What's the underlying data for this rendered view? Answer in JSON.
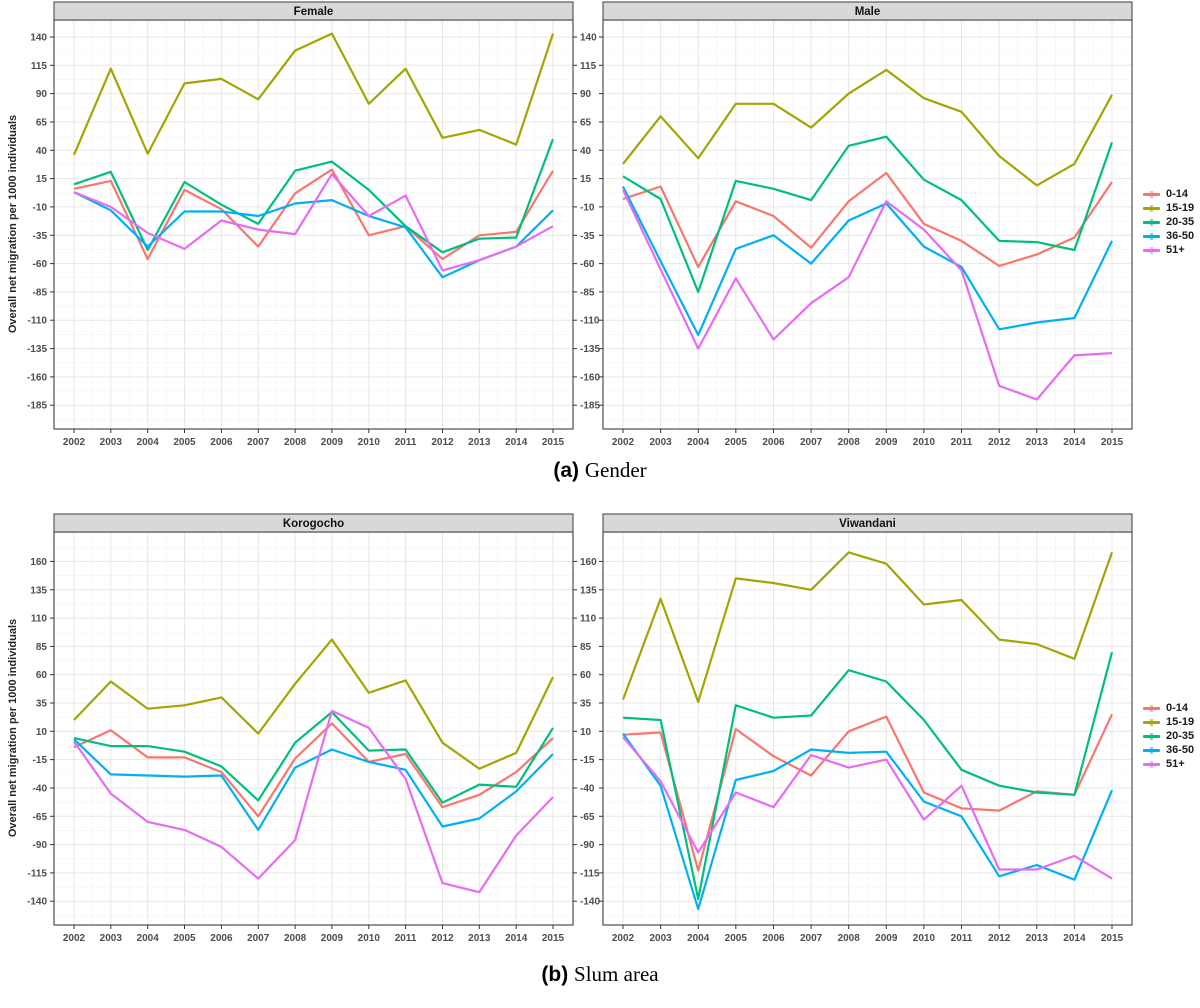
{
  "figure": {
    "caption_a_label": "(a)",
    "caption_a_text": "Gender",
    "caption_b_label": "(b)",
    "caption_b_text": "Slum area"
  },
  "axis": {
    "y_title": "Overall net migration per 1000 individuals",
    "years": [
      2002,
      2003,
      2004,
      2005,
      2006,
      2007,
      2008,
      2009,
      2010,
      2011,
      2012,
      2013,
      2014,
      2015
    ]
  },
  "legend": {
    "entries": [
      {
        "label": "0-14",
        "color": "#F8766D"
      },
      {
        "label": "15-19",
        "color": "#A3A500"
      },
      {
        "label": "20-35",
        "color": "#00BF7D"
      },
      {
        "label": "36-50",
        "color": "#00B0F6"
      },
      {
        "label": "51+",
        "color": "#E76BF3"
      }
    ]
  },
  "chart_data": [
    {
      "type": "line",
      "title": "Female",
      "xlabel": "",
      "ylabel": "Overall net migration per 1000 individuals",
      "x": [
        2002,
        2003,
        2004,
        2005,
        2006,
        2007,
        2008,
        2009,
        2010,
        2011,
        2012,
        2013,
        2014,
        2015
      ],
      "ylim": [
        -206,
        155
      ],
      "yticks": [
        140,
        115,
        90,
        65,
        40,
        15,
        -10,
        -35,
        -60,
        -85,
        -110,
        -135,
        -160,
        -185
      ],
      "legend_position": "right",
      "series": [
        {
          "name": "0-14",
          "color": "#F8766D",
          "values": [
            6,
            13,
            -56,
            5,
            -12,
            -45,
            2,
            23,
            -35,
            -27,
            -56,
            -35,
            -32,
            22
          ]
        },
        {
          "name": "15-19",
          "color": "#A3A500",
          "values": [
            36,
            112,
            37,
            99,
            103,
            85,
            128,
            143,
            81,
            112,
            51,
            58,
            45,
            143
          ]
        },
        {
          "name": "20-35",
          "color": "#00BF7D",
          "values": [
            10,
            21,
            -48,
            12,
            -8,
            -25,
            22,
            30,
            5,
            -27,
            -50,
            -38,
            -37,
            50
          ]
        },
        {
          "name": "36-50",
          "color": "#00B0F6",
          "values": [
            3,
            -13,
            -45,
            -14,
            -14,
            -18,
            -7,
            -4,
            -18,
            -28,
            -72,
            -57,
            -45,
            -13
          ]
        },
        {
          "name": "51+",
          "color": "#E76BF3",
          "values": [
            3,
            -10,
            -33,
            -47,
            -22,
            -30,
            -34,
            19,
            -18,
            0,
            -66,
            -57,
            -45,
            -27
          ]
        }
      ]
    },
    {
      "type": "line",
      "title": "Male",
      "xlabel": "",
      "ylabel": "Overall net migration per 1000 individuals",
      "x": [
        2002,
        2003,
        2004,
        2005,
        2006,
        2007,
        2008,
        2009,
        2010,
        2011,
        2012,
        2013,
        2014,
        2015
      ],
      "ylim": [
        -206,
        155
      ],
      "yticks": [
        140,
        115,
        90,
        65,
        40,
        15,
        -10,
        -35,
        -60,
        -85,
        -110,
        -135,
        -160,
        -185
      ],
      "legend_position": "right",
      "series": [
        {
          "name": "0-14",
          "color": "#F8766D",
          "values": [
            -3,
            8,
            -63,
            -5,
            -18,
            -46,
            -5,
            20,
            -25,
            -40,
            -62,
            -52,
            -37,
            12
          ]
        },
        {
          "name": "15-19",
          "color": "#A3A500",
          "values": [
            28,
            70,
            33,
            81,
            81,
            60,
            90,
            111,
            86,
            74,
            35,
            9,
            28,
            89
          ]
        },
        {
          "name": "20-35",
          "color": "#00BF7D",
          "values": [
            17,
            -3,
            -85,
            13,
            6,
            -4,
            44,
            52,
            14,
            -4,
            -40,
            -41,
            -48,
            47
          ]
        },
        {
          "name": "36-50",
          "color": "#00B0F6",
          "values": [
            8,
            -58,
            -123,
            -47,
            -35,
            -60,
            -22,
            -7,
            -45,
            -63,
            -118,
            -112,
            -108,
            -40
          ]
        },
        {
          "name": "51+",
          "color": "#E76BF3",
          "values": [
            5,
            -65,
            -135,
            -73,
            -127,
            -95,
            -72,
            -5,
            -30,
            -66,
            -168,
            -180,
            -141,
            -139
          ]
        }
      ]
    },
    {
      "type": "line",
      "title": "Korogocho",
      "xlabel": "",
      "ylabel": "Overall net migration per 1000 individuals",
      "x": [
        2002,
        2003,
        2004,
        2005,
        2006,
        2007,
        2008,
        2009,
        2010,
        2011,
        2012,
        2013,
        2014,
        2015
      ],
      "ylim": [
        -161,
        186
      ],
      "yticks": [
        160,
        135,
        110,
        85,
        60,
        35,
        10,
        -15,
        -40,
        -65,
        -90,
        -115,
        -140
      ],
      "legend_position": "right",
      "series": [
        {
          "name": "0-14",
          "color": "#F8766D",
          "values": [
            -4,
            11,
            -13,
            -13,
            -26,
            -65,
            -14,
            17,
            -17,
            -10,
            -57,
            -46,
            -26,
            4
          ]
        },
        {
          "name": "15-19",
          "color": "#A3A500",
          "values": [
            20,
            54,
            30,
            33,
            40,
            8,
            52,
            91,
            44,
            55,
            0,
            -23,
            -9,
            58
          ]
        },
        {
          "name": "20-35",
          "color": "#00BF7D",
          "values": [
            4,
            -3,
            -3,
            -8,
            -21,
            -51,
            0,
            27,
            -7,
            -6,
            -53,
            -37,
            -39,
            13
          ]
        },
        {
          "name": "36-50",
          "color": "#00B0F6",
          "values": [
            3,
            -28,
            -29,
            -30,
            -29,
            -77,
            -22,
            -6,
            -17,
            -24,
            -74,
            -67,
            -43,
            -10
          ]
        },
        {
          "name": "51+",
          "color": "#E76BF3",
          "values": [
            1,
            -45,
            -70,
            -77,
            -92,
            -120,
            -86,
            28,
            13,
            -32,
            -124,
            -132,
            -82,
            -48
          ]
        }
      ]
    },
    {
      "type": "line",
      "title": "Viwandani",
      "xlabel": "",
      "ylabel": "Overall net migration per 1000 individuals",
      "x": [
        2002,
        2003,
        2004,
        2005,
        2006,
        2007,
        2008,
        2009,
        2010,
        2011,
        2012,
        2013,
        2014,
        2015
      ],
      "ylim": [
        -161,
        186
      ],
      "yticks": [
        160,
        135,
        110,
        85,
        60,
        35,
        10,
        -15,
        -40,
        -65,
        -90,
        -115,
        -140
      ],
      "legend_position": "right",
      "series": [
        {
          "name": "0-14",
          "color": "#F8766D",
          "values": [
            7,
            9,
            -113,
            12,
            -12,
            -29,
            10,
            23,
            -44,
            -58,
            -60,
            -43,
            -46,
            25
          ]
        },
        {
          "name": "15-19",
          "color": "#A3A500",
          "values": [
            38,
            127,
            36,
            145,
            141,
            135,
            168,
            158,
            122,
            126,
            91,
            87,
            74,
            168
          ]
        },
        {
          "name": "20-35",
          "color": "#00BF7D",
          "values": [
            22,
            20,
            -138,
            33,
            22,
            24,
            64,
            54,
            20,
            -24,
            -38,
            -44,
            -46,
            80
          ]
        },
        {
          "name": "36-50",
          "color": "#00B0F6",
          "values": [
            8,
            -38,
            -147,
            -33,
            -25,
            -6,
            -9,
            -8,
            -52,
            -65,
            -118,
            -108,
            -121,
            -42
          ]
        },
        {
          "name": "51+",
          "color": "#E76BF3",
          "values": [
            5,
            -34,
            -97,
            -44,
            -57,
            -11,
            -22,
            -15,
            -68,
            -38,
            -112,
            -112,
            -100,
            -120
          ]
        }
      ]
    }
  ]
}
